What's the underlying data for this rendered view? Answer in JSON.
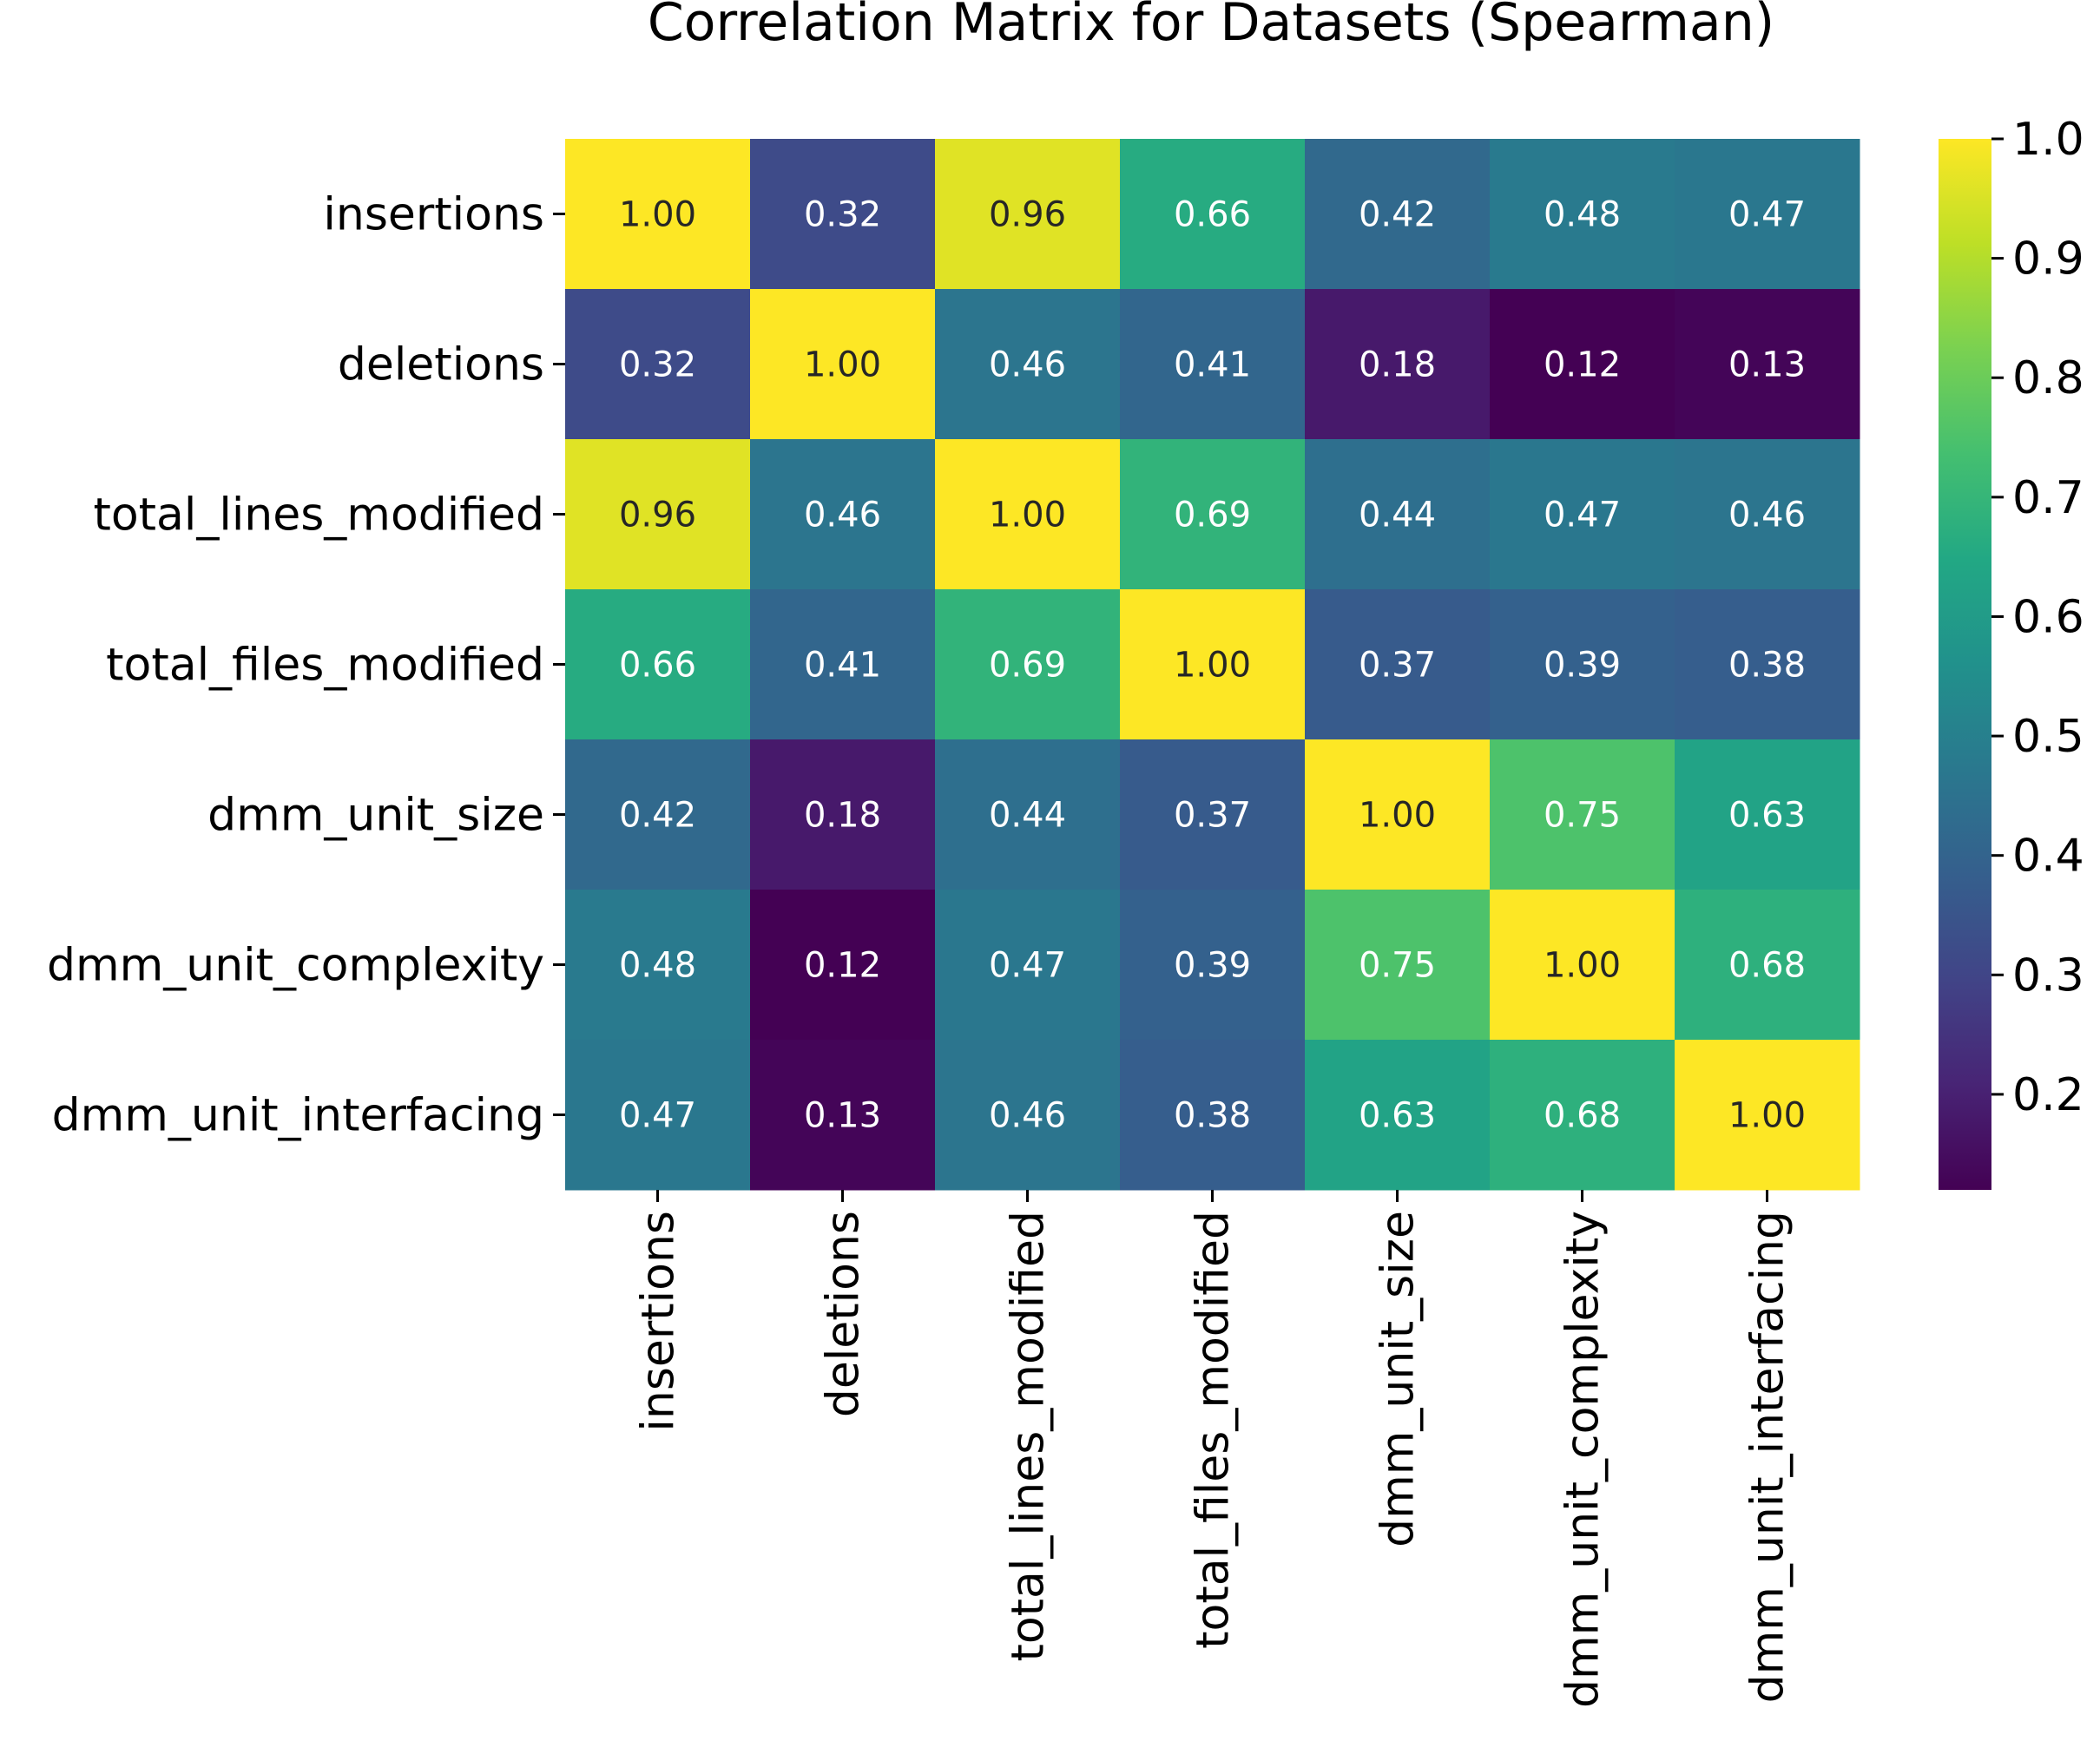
{
  "chart_data": {
    "type": "heatmap",
    "title": "Correlation Matrix for Datasets (Spearman)",
    "row_labels": [
      "insertions",
      "deletions",
      "total_lines_modified",
      "total_files_modified",
      "dmm_unit_size",
      "dmm_unit_complexity",
      "dmm_unit_interfacing"
    ],
    "col_labels": [
      "insertions",
      "deletions",
      "total_lines_modified",
      "total_files_modified",
      "dmm_unit_size",
      "dmm_unit_complexity",
      "dmm_unit_interfacing"
    ],
    "values": [
      [
        1.0,
        0.32,
        0.96,
        0.66,
        0.42,
        0.48,
        0.47
      ],
      [
        0.32,
        1.0,
        0.46,
        0.41,
        0.18,
        0.12,
        0.13
      ],
      [
        0.96,
        0.46,
        1.0,
        0.69,
        0.44,
        0.47,
        0.46
      ],
      [
        0.66,
        0.41,
        0.69,
        1.0,
        0.37,
        0.39,
        0.38
      ],
      [
        0.42,
        0.18,
        0.44,
        0.37,
        1.0,
        0.75,
        0.63
      ],
      [
        0.48,
        0.12,
        0.47,
        0.39,
        0.75,
        1.0,
        0.68
      ],
      [
        0.47,
        0.13,
        0.46,
        0.38,
        0.63,
        0.68,
        1.0
      ]
    ],
    "value_format": "2 decimals",
    "colormap": "viridis",
    "colorbar": {
      "range": [
        0.12,
        1.0
      ],
      "tick_labels": [
        "0.2",
        "0.3",
        "0.4",
        "0.5",
        "0.6",
        "0.7",
        "0.8",
        "0.9",
        "1.0"
      ],
      "position": "right"
    },
    "legend": "none",
    "grid": false
  }
}
